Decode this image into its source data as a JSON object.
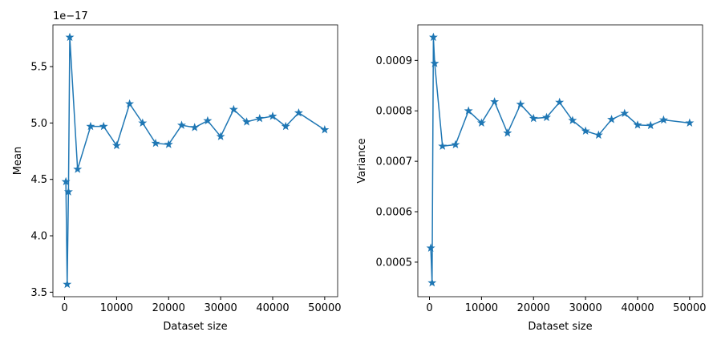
{
  "chart_data": [
    {
      "type": "line",
      "xlabel": "Dataset size",
      "ylabel": "Mean",
      "y_offset_text": "1e−17",
      "color": "#1f77b4",
      "marker": "star",
      "x": [
        250,
        500,
        750,
        1000,
        2500,
        5000,
        7500,
        10000,
        12500,
        15000,
        17500,
        20000,
        22500,
        25000,
        27500,
        30000,
        32500,
        35000,
        37500,
        40000,
        42500,
        45000,
        50000
      ],
      "values": [
        4.48,
        3.57,
        4.39,
        5.76,
        4.59,
        4.97,
        4.97,
        4.8,
        5.17,
        5.0,
        4.82,
        4.81,
        4.98,
        4.96,
        5.02,
        4.88,
        5.12,
        5.01,
        5.04,
        5.06,
        4.97,
        5.09,
        4.94
      ],
      "xlim": [
        -2237.5,
        52487.5
      ],
      "ylim": [
        3.46,
        5.87
      ],
      "xticks": [
        0,
        10000,
        20000,
        30000,
        40000,
        50000
      ],
      "yticks": [
        3.5,
        {
          "value": 4,
          "label": "4.0"
        },
        4.5,
        {
          "value": 5,
          "label": "5.0"
        },
        5.5
      ]
    },
    {
      "type": "line",
      "xlabel": "Dataset size",
      "ylabel": "Variance",
      "color": "#1f77b4",
      "marker": "star",
      "x": [
        250,
        500,
        750,
        1000,
        2500,
        5000,
        7500,
        10000,
        12500,
        15000,
        17500,
        20000,
        22500,
        25000,
        27500,
        30000,
        32500,
        35000,
        37500,
        40000,
        42500,
        45000,
        50000
      ],
      "values": [
        0.000528,
        0.000459,
        0.000946,
        0.000894,
        0.00073,
        0.000733,
        0.0008,
        0.000776,
        0.000818,
        0.000756,
        0.000813,
        0.000785,
        0.000787,
        0.000817,
        0.000781,
        0.00076,
        0.000752,
        0.000783,
        0.000795,
        0.000772,
        0.000771,
        0.000782,
        0.000776
      ],
      "xlim": [
        -2237.5,
        52487.5
      ],
      "ylim": [
        0.0004315,
        0.0009705
      ],
      "xticks": [
        0,
        10000,
        20000,
        30000,
        40000,
        50000
      ],
      "yticks": [
        0.0005,
        0.0006,
        0.0007,
        0.0008,
        0.0009
      ]
    }
  ]
}
